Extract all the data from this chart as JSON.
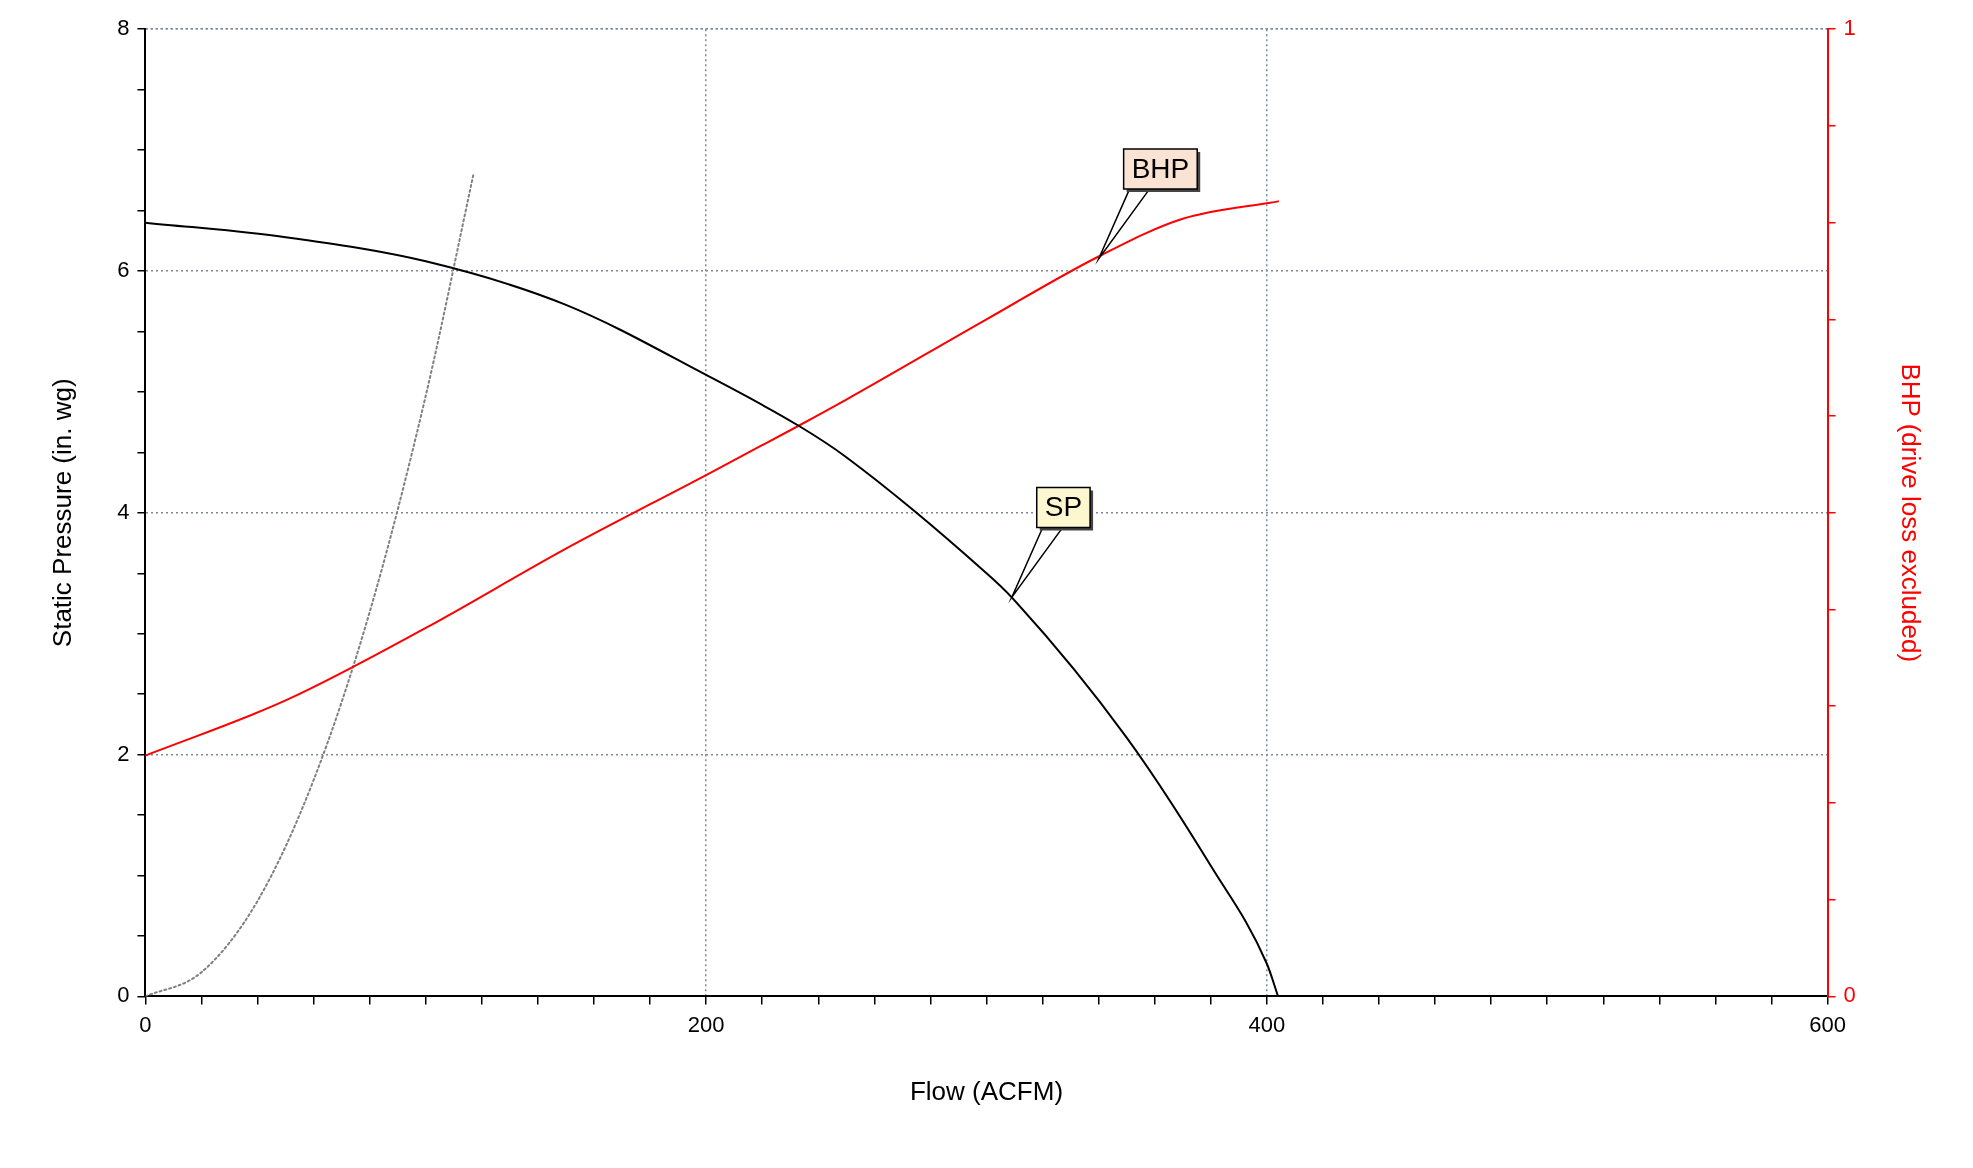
{
  "chart_data": {
    "type": "line",
    "xlabel": "Flow (ACFM)",
    "ylabel": "Static Pressure (in. wg)",
    "y2label": "BHP (drive loss excluded)",
    "xlim": [
      0,
      600
    ],
    "xticks": [
      0,
      {
        "value": 20,
        "label": null
      },
      {
        "value": 40,
        "label": null
      },
      {
        "value": 60,
        "label": null
      },
      {
        "value": 80,
        "label": null
      },
      {
        "value": 100,
        "label": null
      },
      {
        "value": 120,
        "label": null
      },
      {
        "value": 140,
        "label": null
      },
      {
        "value": 160,
        "label": null
      },
      {
        "value": 180,
        "label": null
      },
      200,
      {
        "value": 220,
        "label": null
      },
      {
        "value": 240,
        "label": null
      },
      {
        "value": 260,
        "label": null
      },
      {
        "value": 280,
        "label": null
      },
      {
        "value": 300,
        "label": null
      },
      {
        "value": 320,
        "label": null
      },
      {
        "value": 340,
        "label": null
      },
      {
        "value": 360,
        "label": null
      },
      {
        "value": 380,
        "label": null
      },
      400,
      {
        "value": 420,
        "label": null
      },
      {
        "value": 440,
        "label": null
      },
      {
        "value": 460,
        "label": null
      },
      {
        "value": 480,
        "label": null
      },
      {
        "value": 500,
        "label": null
      },
      {
        "value": 520,
        "label": null
      },
      {
        "value": 540,
        "label": null
      },
      {
        "value": 560,
        "label": null
      },
      {
        "value": 580,
        "label": null
      },
      600
    ],
    "ylim": [
      0,
      8
    ],
    "yticks": [
      0,
      {
        "value": 0.5,
        "label": null
      },
      {
        "value": 1,
        "label": null
      },
      {
        "value": 1.5,
        "label": null
      },
      2,
      {
        "value": 2.5,
        "label": null
      },
      {
        "value": 3,
        "label": null
      },
      {
        "value": 3.5,
        "label": null
      },
      4,
      {
        "value": 4.5,
        "label": null
      },
      {
        "value": 5,
        "label": null
      },
      {
        "value": 5.5,
        "label": null
      },
      6,
      {
        "value": 6.5,
        "label": null
      },
      {
        "value": 7,
        "label": null
      },
      {
        "value": 7.5,
        "label": null
      },
      8
    ],
    "y2lim": [
      0,
      1
    ],
    "y2ticks": [
      0,
      {
        "value": 0.1,
        "label": null
      },
      {
        "value": 0.2,
        "label": null
      },
      {
        "value": 0.3,
        "label": null
      },
      {
        "value": 0.4,
        "label": null
      },
      {
        "value": 0.5,
        "label": null
      },
      {
        "value": 0.6,
        "label": null
      },
      {
        "value": 0.7,
        "label": null
      },
      {
        "value": 0.8,
        "label": null
      },
      {
        "value": 0.9,
        "label": null
      },
      1
    ],
    "grid": true,
    "legend": false,
    "marker": "none",
    "series": [
      {
        "color": "#000000",
        "x": [
          0,
          50,
          100,
          150,
          200,
          233,
          250,
          300,
          309,
          350,
          380,
          400,
          404
        ],
        "values": [
          6.4,
          6.28,
          6.08,
          5.72,
          5.14,
          4.72,
          4.46,
          3.5,
          3.3,
          2.14,
          1.08,
          0.27,
          0
        ]
      },
      {
        "color": "#ff0000",
        "axis": "y2",
        "x": [
          0,
          50,
          100,
          150,
          200,
          233,
          250,
          300,
          340,
          370,
          404
        ],
        "values": [
          0.249,
          0.306,
          0.381,
          0.463,
          0.539,
          0.59,
          0.617,
          0.7,
          0.765,
          0.804,
          0.822
        ]
      },
      {
        "color": "#808080",
        "line_style": "dotted",
        "x": [
          0,
          20,
          40,
          60,
          80,
          100,
          117
        ],
        "values": [
          0,
          0.2,
          0.79,
          1.79,
          3.18,
          4.97,
          6.8
        ]
      }
    ],
    "annotations": [
      {
        "text": "BHP",
        "x": 340,
        "y": 6.1
      },
      {
        "text": "SP",
        "x": 309,
        "y": 3.3
      }
    ]
  }
}
